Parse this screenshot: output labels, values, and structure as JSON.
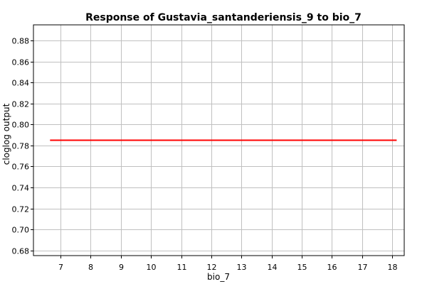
{
  "chart_data": {
    "type": "line",
    "title": "Response of Gustavia_santanderiensis_9 to bio_7",
    "xlabel": "bio_7",
    "ylabel": "cloglog output",
    "xlim": [
      6.1,
      18.4
    ],
    "ylim": [
      0.675,
      0.895
    ],
    "xticks": [
      7,
      8,
      9,
      10,
      11,
      12,
      13,
      14,
      15,
      16,
      17,
      18
    ],
    "yticks": [
      0.68,
      0.7,
      0.72,
      0.74,
      0.76,
      0.78,
      0.8,
      0.82,
      0.84,
      0.86,
      0.88
    ],
    "xtick_labels": [
      "7",
      "8",
      "9",
      "10",
      "11",
      "12",
      "13",
      "14",
      "15",
      "16",
      "17",
      "18"
    ],
    "ytick_labels": [
      "0.68",
      "0.70",
      "0.72",
      "0.74",
      "0.76",
      "0.78",
      "0.80",
      "0.82",
      "0.84",
      "0.86",
      "0.88"
    ],
    "grid": true,
    "series": [
      {
        "color": "#ff0000",
        "x": [
          6.65,
          18.15
        ],
        "y": [
          0.785,
          0.785
        ]
      }
    ]
  }
}
